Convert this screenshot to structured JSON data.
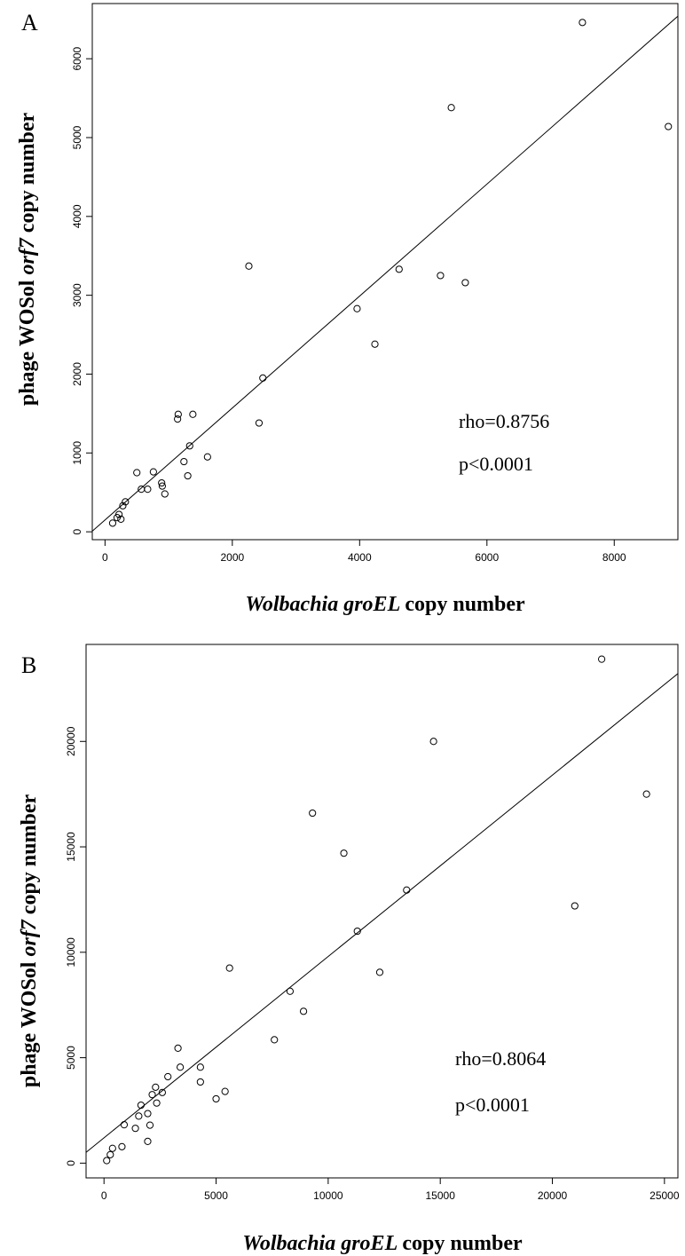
{
  "chart_data": [
    {
      "type": "scatter",
      "panel_label": "A",
      "xlabel_parts": [
        "Wolbachia",
        "groEL",
        "copy number"
      ],
      "ylabel_parts": [
        "phage WOSol",
        "orf7",
        "copy number"
      ],
      "annotations": [
        "rho=0.8756",
        "p<0.0001"
      ],
      "xlim": [
        -200,
        9000
      ],
      "ylim": [
        -100,
        6700
      ],
      "xticks": [
        0,
        2000,
        4000,
        6000,
        8000
      ],
      "yticks": [
        0,
        1000,
        2000,
        3000,
        4000,
        5000,
        6000
      ],
      "fit_line": {
        "intercept": 150,
        "slope": 0.71
      },
      "points": [
        [
          120,
          110
        ],
        [
          190,
          180
        ],
        [
          220,
          220
        ],
        [
          250,
          160
        ],
        [
          280,
          330
        ],
        [
          320,
          380
        ],
        [
          500,
          750
        ],
        [
          570,
          540
        ],
        [
          670,
          540
        ],
        [
          760,
          760
        ],
        [
          890,
          620
        ],
        [
          900,
          580
        ],
        [
          940,
          480
        ],
        [
          1140,
          1430
        ],
        [
          1150,
          1490
        ],
        [
          1240,
          890
        ],
        [
          1300,
          710
        ],
        [
          1330,
          1090
        ],
        [
          1380,
          1490
        ],
        [
          1610,
          950
        ],
        [
          2260,
          3370
        ],
        [
          2420,
          1380
        ],
        [
          2480,
          1950
        ],
        [
          3960,
          2830
        ],
        [
          4240,
          2380
        ],
        [
          4620,
          3330
        ],
        [
          5270,
          3250
        ],
        [
          5440,
          5380
        ],
        [
          5660,
          3160
        ],
        [
          7500,
          6460
        ],
        [
          8850,
          5140
        ]
      ]
    },
    {
      "type": "scatter",
      "panel_label": "B",
      "xlabel_parts": [
        "Wolbachia",
        "groEL",
        "copy number"
      ],
      "ylabel_parts": [
        "phage WOSol",
        "orf7",
        "copy number"
      ],
      "annotations": [
        "rho=0.8064",
        "p<0.0001"
      ],
      "xlim": [
        -800,
        25600
      ],
      "ylim": [
        -700,
        24600
      ],
      "xticks": [
        0,
        5000,
        10000,
        15000,
        20000,
        25000
      ],
      "yticks": [
        0,
        5000,
        10000,
        15000,
        20000
      ],
      "fit_line": {
        "intercept": 1200,
        "slope": 0.86
      },
      "points": [
        [
          120,
          120
        ],
        [
          280,
          400
        ],
        [
          380,
          700
        ],
        [
          800,
          780
        ],
        [
          900,
          1820
        ],
        [
          1400,
          1650
        ],
        [
          1550,
          2230
        ],
        [
          1650,
          2750
        ],
        [
          1950,
          1030
        ],
        [
          1950,
          2350
        ],
        [
          2050,
          1800
        ],
        [
          2150,
          3250
        ],
        [
          2300,
          3600
        ],
        [
          2350,
          2850
        ],
        [
          2600,
          3350
        ],
        [
          2850,
          4100
        ],
        [
          3300,
          5450
        ],
        [
          3400,
          4550
        ],
        [
          4300,
          4550
        ],
        [
          4300,
          3850
        ],
        [
          5000,
          3050
        ],
        [
          5400,
          3400
        ],
        [
          5600,
          9250
        ],
        [
          7600,
          5850
        ],
        [
          8300,
          8150
        ],
        [
          8900,
          7200
        ],
        [
          9300,
          16600
        ],
        [
          10700,
          14700
        ],
        [
          11300,
          11000
        ],
        [
          12300,
          9050
        ],
        [
          13500,
          12950
        ],
        [
          14700,
          20000
        ],
        [
          21000,
          12200
        ],
        [
          22200,
          23900
        ],
        [
          24200,
          17500
        ]
      ]
    }
  ]
}
